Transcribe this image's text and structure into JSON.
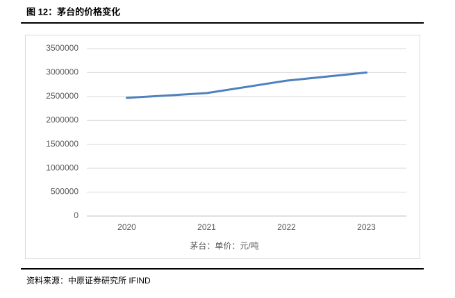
{
  "chart_data": {
    "type": "line",
    "title": "图 12：茅台的价格变化",
    "categories": [
      "2020",
      "2021",
      "2022",
      "2023"
    ],
    "series": [
      {
        "name": "茅台：单价：元/吨",
        "color": "#4f81bd",
        "values": [
          2470000,
          2570000,
          2830000,
          3000000
        ]
      }
    ],
    "ylim": [
      0,
      3500000
    ],
    "yticks": [
      0,
      500000,
      1000000,
      1500000,
      2000000,
      2500000,
      3000000,
      3500000
    ],
    "grid": true,
    "legend": "bottom",
    "source": "资料来源：中原证券研究所  IFIND"
  }
}
